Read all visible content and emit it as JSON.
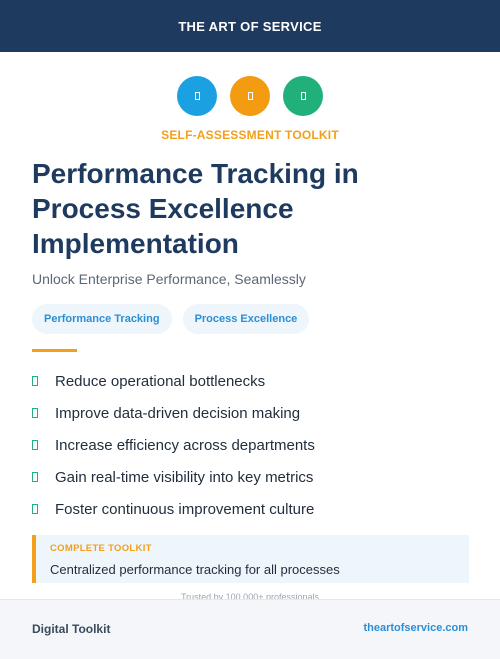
{
  "header": {
    "brand": "THE ART OF SERVICE"
  },
  "icons": [
    {
      "name": "tile-icon",
      "color": "#1ba1e2"
    },
    {
      "name": "tile-icon",
      "color": "#f39c12"
    },
    {
      "name": "tile-icon",
      "color": "#21b07a"
    }
  ],
  "kicker": "SELF-ASSESSMENT TOOLKIT",
  "title": "Performance Tracking in Process Excellence Implementation",
  "subtitle": "Unlock Enterprise Performance, Seamlessly",
  "tags": [
    "Performance Tracking",
    "Process Excellence"
  ],
  "benefits": [
    "Reduce operational bottlenecks",
    "Improve data-driven decision making",
    "Increase efficiency across departments",
    "Gain real-time visibility into key metrics",
    "Foster continuous improvement culture"
  ],
  "callout": {
    "label": "COMPLETE TOOLKIT",
    "text": "Centralized performance tracking for all processes"
  },
  "trusted": "Trusted by 100,000+ professionals",
  "footer": {
    "left": "Digital Toolkit",
    "right": "theartofservice.com"
  },
  "colors": {
    "navy": "#1e3a5f",
    "accent": "#f2a01b",
    "link": "#2b8fd6",
    "check": "#21b07a"
  }
}
